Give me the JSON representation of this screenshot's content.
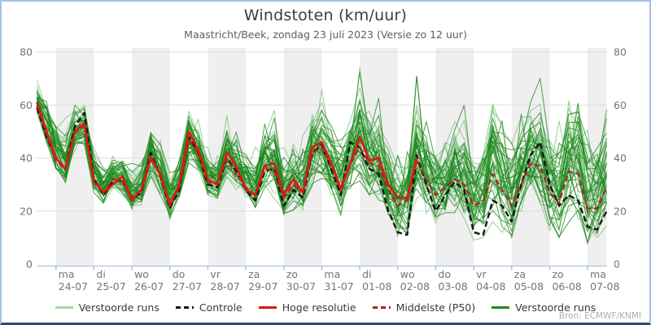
{
  "header": {
    "title": "Windstoten (km/uur)",
    "subtitle": "Maastricht/Beek, zondag 23 juli 2023 (Versie zo 12 uur)"
  },
  "footer": {
    "source": "Bron: ECMWF/KNMI"
  },
  "legend": [
    {
      "label": "Verstoorde runs",
      "style": "solid",
      "color": "#a8d5a8"
    },
    {
      "label": "Controle",
      "style": "dashed",
      "color": "#151515"
    },
    {
      "label": "Hoge resolutie",
      "style": "solid",
      "color": "#e41414"
    },
    {
      "label": "Middelste (P50)",
      "style": "dashed",
      "color": "#b22222"
    },
    {
      "label": "Verstoorde runs",
      "style": "solid",
      "color": "#1e8a1e"
    }
  ],
  "chart_data": {
    "type": "line",
    "title": "Windstoten (km/uur)",
    "subtitle": "Maastricht/Beek, zondag 23 juli 2023 (Versie zo 12 uur)",
    "ylabel": "km/uur",
    "ylim": [
      0,
      80
    ],
    "yticks": [
      0,
      20,
      40,
      60,
      80
    ],
    "grid": "horizontal",
    "time_step_hours": 6,
    "x_range": [
      "zo 23-07 12:00",
      "ma 07-08 12:00"
    ],
    "day_band_shading": "alternate grey per day starting 24-07",
    "categories": [
      {
        "day": "ma",
        "date": "24-07"
      },
      {
        "day": "di",
        "date": "25-07"
      },
      {
        "day": "wo",
        "date": "26-07"
      },
      {
        "day": "do",
        "date": "27-07"
      },
      {
        "day": "vr",
        "date": "28-07"
      },
      {
        "day": "za",
        "date": "29-07"
      },
      {
        "day": "zo",
        "date": "30-07"
      },
      {
        "day": "ma",
        "date": "31-07"
      },
      {
        "day": "di",
        "date": "01-08"
      },
      {
        "day": "wo",
        "date": "02-08"
      },
      {
        "day": "do",
        "date": "03-08"
      },
      {
        "day": "vr",
        "date": "04-08"
      },
      {
        "day": "za",
        "date": "05-08"
      },
      {
        "day": "zo",
        "date": "06-08"
      },
      {
        "day": "ma",
        "date": "07-08"
      }
    ],
    "series": [
      {
        "name": "Controle",
        "color": "#151515",
        "dash": true,
        "values": [
          59,
          48,
          40,
          36,
          52,
          57,
          32,
          26,
          31,
          32,
          24,
          27,
          42,
          33,
          21,
          28,
          48,
          42,
          30,
          29,
          40,
          35,
          28,
          24,
          35,
          36,
          22,
          28,
          25,
          42,
          45,
          36,
          26,
          46,
          44,
          36,
          34,
          20,
          12,
          11,
          41,
          30,
          20,
          26,
          31,
          28,
          12,
          11,
          24,
          22,
          16,
          30,
          41,
          46,
          30,
          22,
          26,
          24,
          14,
          13,
          20
        ]
      },
      {
        "name": "Hoge resolutie",
        "color": "#e41414",
        "dash": false,
        "values": [
          61,
          50,
          40,
          36,
          50,
          53,
          31,
          27,
          30,
          33,
          24,
          28,
          40,
          34,
          22,
          30,
          50,
          43,
          32,
          30,
          42,
          37,
          28,
          26,
          37,
          38,
          26,
          32,
          27,
          44,
          46,
          38,
          28,
          38,
          48,
          39,
          40,
          30,
          25,
          25,
          40
        ]
      },
      {
        "name": "Middelste (P50)",
        "color": "#b22222",
        "dash": true,
        "values": [
          60,
          49,
          39,
          36,
          50,
          52,
          32,
          27,
          32,
          31,
          25,
          28,
          41,
          33,
          23,
          29,
          47,
          42,
          31,
          30,
          40,
          34,
          29,
          26,
          36,
          35,
          25,
          30,
          27,
          42,
          44,
          37,
          29,
          38,
          44,
          38,
          37,
          28,
          22,
          24,
          39,
          32,
          26,
          29,
          32,
          30,
          22,
          24,
          34,
          28,
          22,
          30,
          38,
          37,
          27,
          23,
          35,
          34,
          21,
          21,
          29
        ]
      }
    ],
    "ensemble": {
      "name": "Verstoorde runs",
      "count": 50,
      "colors": {
        "light": "#55b055",
        "dark": "#1d861d"
      },
      "seed": 7,
      "envelope_min": [
        57,
        44,
        36,
        30,
        42,
        42,
        27,
        23,
        26,
        25,
        20,
        22,
        30,
        26,
        16,
        22,
        34,
        32,
        22,
        22,
        28,
        26,
        20,
        18,
        26,
        24,
        16,
        18,
        20,
        26,
        28,
        24,
        18,
        24,
        28,
        26,
        24,
        16,
        10,
        8,
        18,
        16,
        12,
        14,
        18,
        16,
        9,
        10,
        14,
        12,
        10,
        14,
        18,
        16,
        12,
        10,
        14,
        12,
        8,
        10,
        12
      ],
      "envelope_max": [
        70,
        74,
        62,
        55,
        60,
        62,
        48,
        40,
        44,
        45,
        38,
        42,
        58,
        50,
        40,
        46,
        62,
        56,
        46,
        44,
        56,
        52,
        48,
        44,
        56,
        58,
        44,
        46,
        56,
        62,
        66,
        56,
        58,
        64,
        77,
        62,
        71,
        56,
        48,
        46,
        71,
        60,
        52,
        56,
        67,
        60,
        50,
        52,
        73,
        60,
        56,
        62,
        74,
        70,
        58,
        54,
        72,
        62,
        52,
        56,
        61
      ]
    }
  }
}
